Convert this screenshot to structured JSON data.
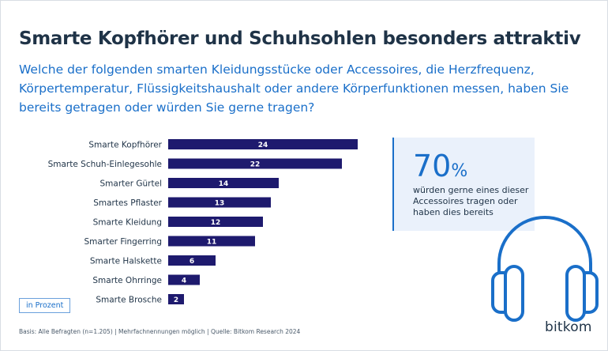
{
  "title": "Smarte Kopfhörer und Schuhsohlen besonders attraktiv",
  "subtitle": "Welche der folgenden smarten Kleidungsstücke oder Accessoires, die Herzfrequenz, Körpertemperatur, Flüssigkeitshaushalt oder andere Körperfunktionen messen, haben Sie bereits getragen oder würden Sie gerne tragen?",
  "callout": {
    "value": "70",
    "unit": "%",
    "text": "würden gerne eines dieser Accessoires tragen oder haben dies bereits"
  },
  "unit_label": "in Prozent",
  "footer": "Basis: Alle Befragten (n=1.205) | Mehrfachnennungen möglich | Quelle: Bitkom Research 2024",
  "logo": "bitkom",
  "colors": {
    "bar": "#1e1a6e",
    "accent": "#1a6fc9",
    "callout_bg": "#eaf1fb"
  },
  "icons": [
    "headphones-icon"
  ],
  "chart_data": {
    "type": "bar",
    "orientation": "horizontal",
    "categories": [
      "Smarte Kopfhörer",
      "Smarte Schuh-Einlegesohle",
      "Smarter Gürtel",
      "Smartes Pflaster",
      "Smarte Kleidung",
      "Smarter Fingerring",
      "Smarte Halskette",
      "Smarte Ohrringe",
      "Smarte Brosche"
    ],
    "values": [
      24,
      22,
      14,
      13,
      12,
      11,
      6,
      4,
      2
    ],
    "xlim": [
      0,
      24
    ],
    "grid": false,
    "data_labels": true
  }
}
